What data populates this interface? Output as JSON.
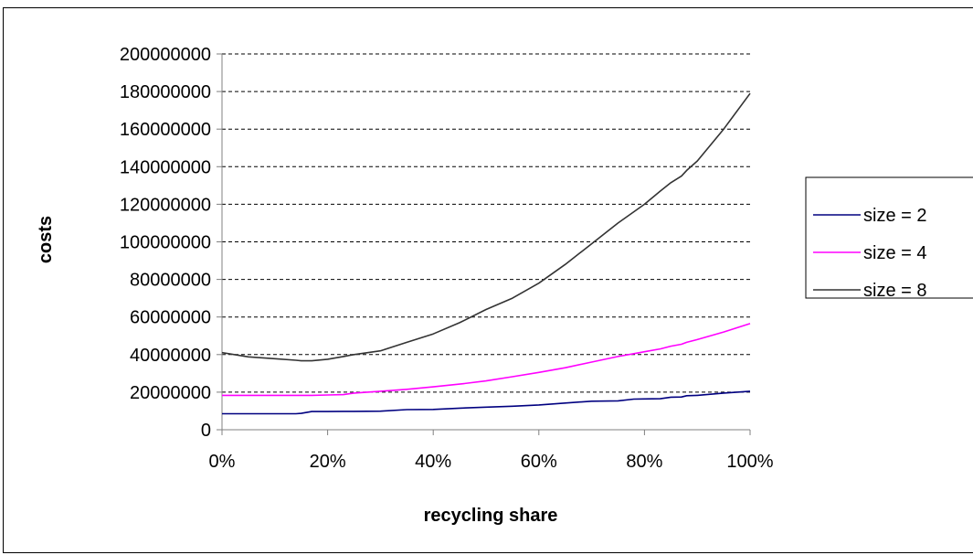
{
  "chart_data": {
    "type": "line",
    "xlabel": "recycling share",
    "ylabel": "costs",
    "x": [
      0,
      5,
      10,
      14,
      15,
      17,
      20,
      23,
      25,
      30,
      35,
      40,
      45,
      50,
      55,
      60,
      65,
      70,
      75,
      78,
      80,
      83,
      85,
      87,
      88,
      90,
      95,
      100
    ],
    "x_tick_labels": [
      "0%",
      "20%",
      "40%",
      "60%",
      "80%",
      "100%"
    ],
    "x_ticks": [
      0,
      20,
      40,
      60,
      80,
      100
    ],
    "xlim": [
      0,
      100
    ],
    "y_ticks": [
      0,
      20000000,
      40000000,
      60000000,
      80000000,
      100000000,
      120000000,
      140000000,
      160000000,
      180000000,
      200000000
    ],
    "y_tick_labels": [
      "0",
      "20000000",
      "40000000",
      "60000000",
      "80000000",
      "100000000",
      "120000000",
      "140000000",
      "160000000",
      "180000000",
      "200000000"
    ],
    "ylim": [
      0,
      200000000
    ],
    "grid": "horizontal dashed",
    "legend_position": "right",
    "series": [
      {
        "name": "size = 2",
        "color": "#000080",
        "values": [
          8500000,
          8500000,
          8500000,
          8500000,
          8700000,
          9700000,
          9700000,
          9800000,
          9800000,
          9900000,
          10700000,
          10800000,
          11500000,
          12000000,
          12500000,
          13200000,
          14200000,
          15200000,
          15400000,
          16300000,
          16400000,
          16500000,
          17300000,
          17400000,
          18100000,
          18300000,
          19500000,
          20500000
        ]
      },
      {
        "name": "size = 4",
        "color": "#ff00ff",
        "values": [
          18300000,
          18300000,
          18300000,
          18300000,
          18300000,
          18300000,
          18500000,
          18700000,
          19500000,
          20500000,
          21500000,
          22800000,
          24300000,
          26000000,
          28200000,
          30500000,
          33000000,
          36000000,
          39000000,
          40500000,
          41500000,
          43000000,
          44500000,
          45500000,
          46500000,
          48000000,
          52000000,
          56500000
        ]
      },
      {
        "name": "size = 8",
        "color": "#333333",
        "values": [
          41000000,
          38800000,
          37800000,
          37000000,
          36700000,
          36700000,
          37500000,
          39000000,
          40000000,
          42000000,
          46500000,
          51000000,
          57000000,
          64000000,
          70000000,
          78000000,
          88000000,
          99000000,
          110000000,
          116000000,
          120000000,
          127000000,
          131500000,
          135000000,
          138000000,
          143000000,
          160000000,
          179000000
        ]
      }
    ]
  }
}
